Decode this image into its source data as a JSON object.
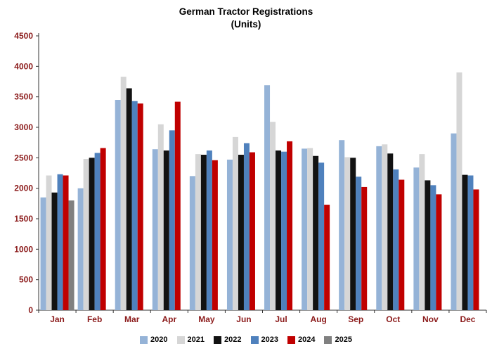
{
  "chart_data": {
    "type": "bar",
    "title": "German Tractor Registrations",
    "subtitle": "(Units)",
    "categories": [
      "Jan",
      "Feb",
      "Mar",
      "Apr",
      "May",
      "Jun",
      "Jul",
      "Aug",
      "Sep",
      "Oct",
      "Nov",
      "Dec"
    ],
    "series": [
      {
        "name": "2020",
        "color": "#95b3d7",
        "values": [
          1850,
          2000,
          3450,
          2640,
          2200,
          2470,
          3690,
          2650,
          2790,
          2690,
          2340,
          2900
        ]
      },
      {
        "name": "2021",
        "color": "#d6d6d6",
        "values": [
          2210,
          2480,
          3830,
          3050,
          2560,
          2840,
          3090,
          2660,
          2510,
          2720,
          2560,
          3900
        ]
      },
      {
        "name": "2022",
        "color": "#121212",
        "values": [
          1930,
          2500,
          3640,
          2620,
          2550,
          2550,
          2620,
          2530,
          2500,
          2570,
          2130,
          2220
        ]
      },
      {
        "name": "2023",
        "color": "#4f81bd",
        "values": [
          2230,
          2580,
          3430,
          2950,
          2620,
          2740,
          2600,
          2420,
          2190,
          2310,
          2050,
          2210
        ]
      },
      {
        "name": "2024",
        "color": "#c00000",
        "values": [
          2210,
          2660,
          3390,
          3420,
          2460,
          2590,
          2770,
          1730,
          2020,
          2140,
          1900,
          1980
        ]
      },
      {
        "name": "2025",
        "color": "#808080",
        "values": [
          1800,
          null,
          null,
          null,
          null,
          null,
          null,
          null,
          null,
          null,
          null,
          null
        ]
      }
    ],
    "ylim": [
      0,
      4500
    ],
    "ytick_step": 500,
    "grid": false,
    "legend_position": "bottom",
    "axis_label_color": "#8b1a1a",
    "axis_line_color": "#333333"
  }
}
